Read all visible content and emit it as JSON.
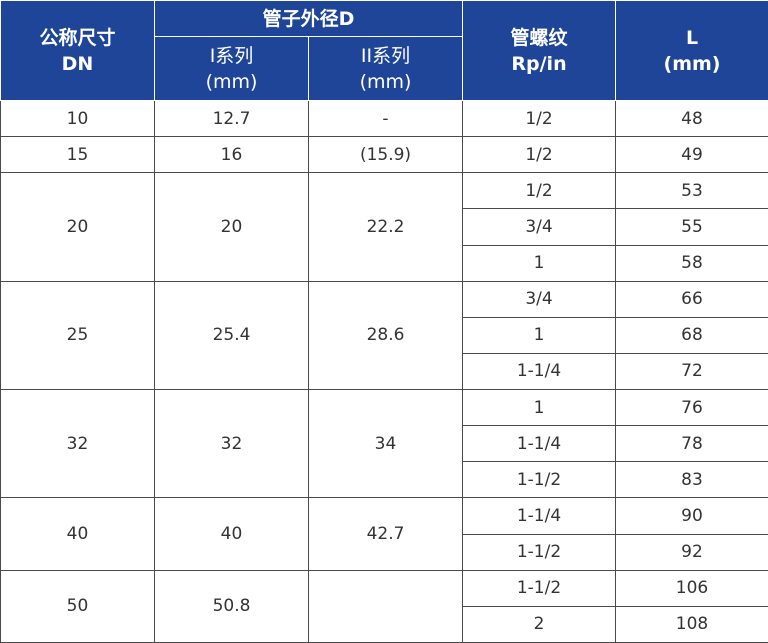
{
  "header": {
    "dn_label": "公称尺寸",
    "dn_sub": "DN",
    "outer_d": "管子外径D",
    "series1": "I系列",
    "series1_unit": "(mm)",
    "series2": "II系列",
    "series2_unit": "(mm)",
    "thread": "管螺纹",
    "thread_sub": "Rp/in",
    "length": "L",
    "length_unit": "(mm)"
  },
  "rows": [
    {
      "dn": "10",
      "s1": "12.7",
      "s2": "-",
      "entries": [
        {
          "rp": "1/2",
          "l": "48"
        }
      ]
    },
    {
      "dn": "15",
      "s1": "16",
      "s2": "(15.9)",
      "entries": [
        {
          "rp": "1/2",
          "l": "49"
        }
      ]
    },
    {
      "dn": "20",
      "s1": "20",
      "s2": "22.2",
      "entries": [
        {
          "rp": "1/2",
          "l": "53"
        },
        {
          "rp": "3/4",
          "l": "55"
        },
        {
          "rp": "1",
          "l": "58"
        }
      ]
    },
    {
      "dn": "25",
      "s1": "25.4",
      "s2": "28.6",
      "entries": [
        {
          "rp": "3/4",
          "l": "66"
        },
        {
          "rp": "1",
          "l": "68"
        },
        {
          "rp": "1-1/4",
          "l": "72"
        }
      ]
    },
    {
      "dn": "32",
      "s1": "32",
      "s2": "34",
      "entries": [
        {
          "rp": "1",
          "l": "76"
        },
        {
          "rp": "1-1/4",
          "l": "78"
        },
        {
          "rp": "1-1/2",
          "l": "83"
        }
      ]
    },
    {
      "dn": "40",
      "s1": "40",
      "s2": "42.7",
      "entries": [
        {
          "rp": "1-1/4",
          "l": "90"
        },
        {
          "rp": "1-1/2",
          "l": "92"
        }
      ]
    },
    {
      "dn": "50",
      "s1": "50.8",
      "s2": "",
      "entries": [
        {
          "rp": "1-1/2",
          "l": "106"
        },
        {
          "rp": "2",
          "l": "108"
        }
      ]
    }
  ]
}
